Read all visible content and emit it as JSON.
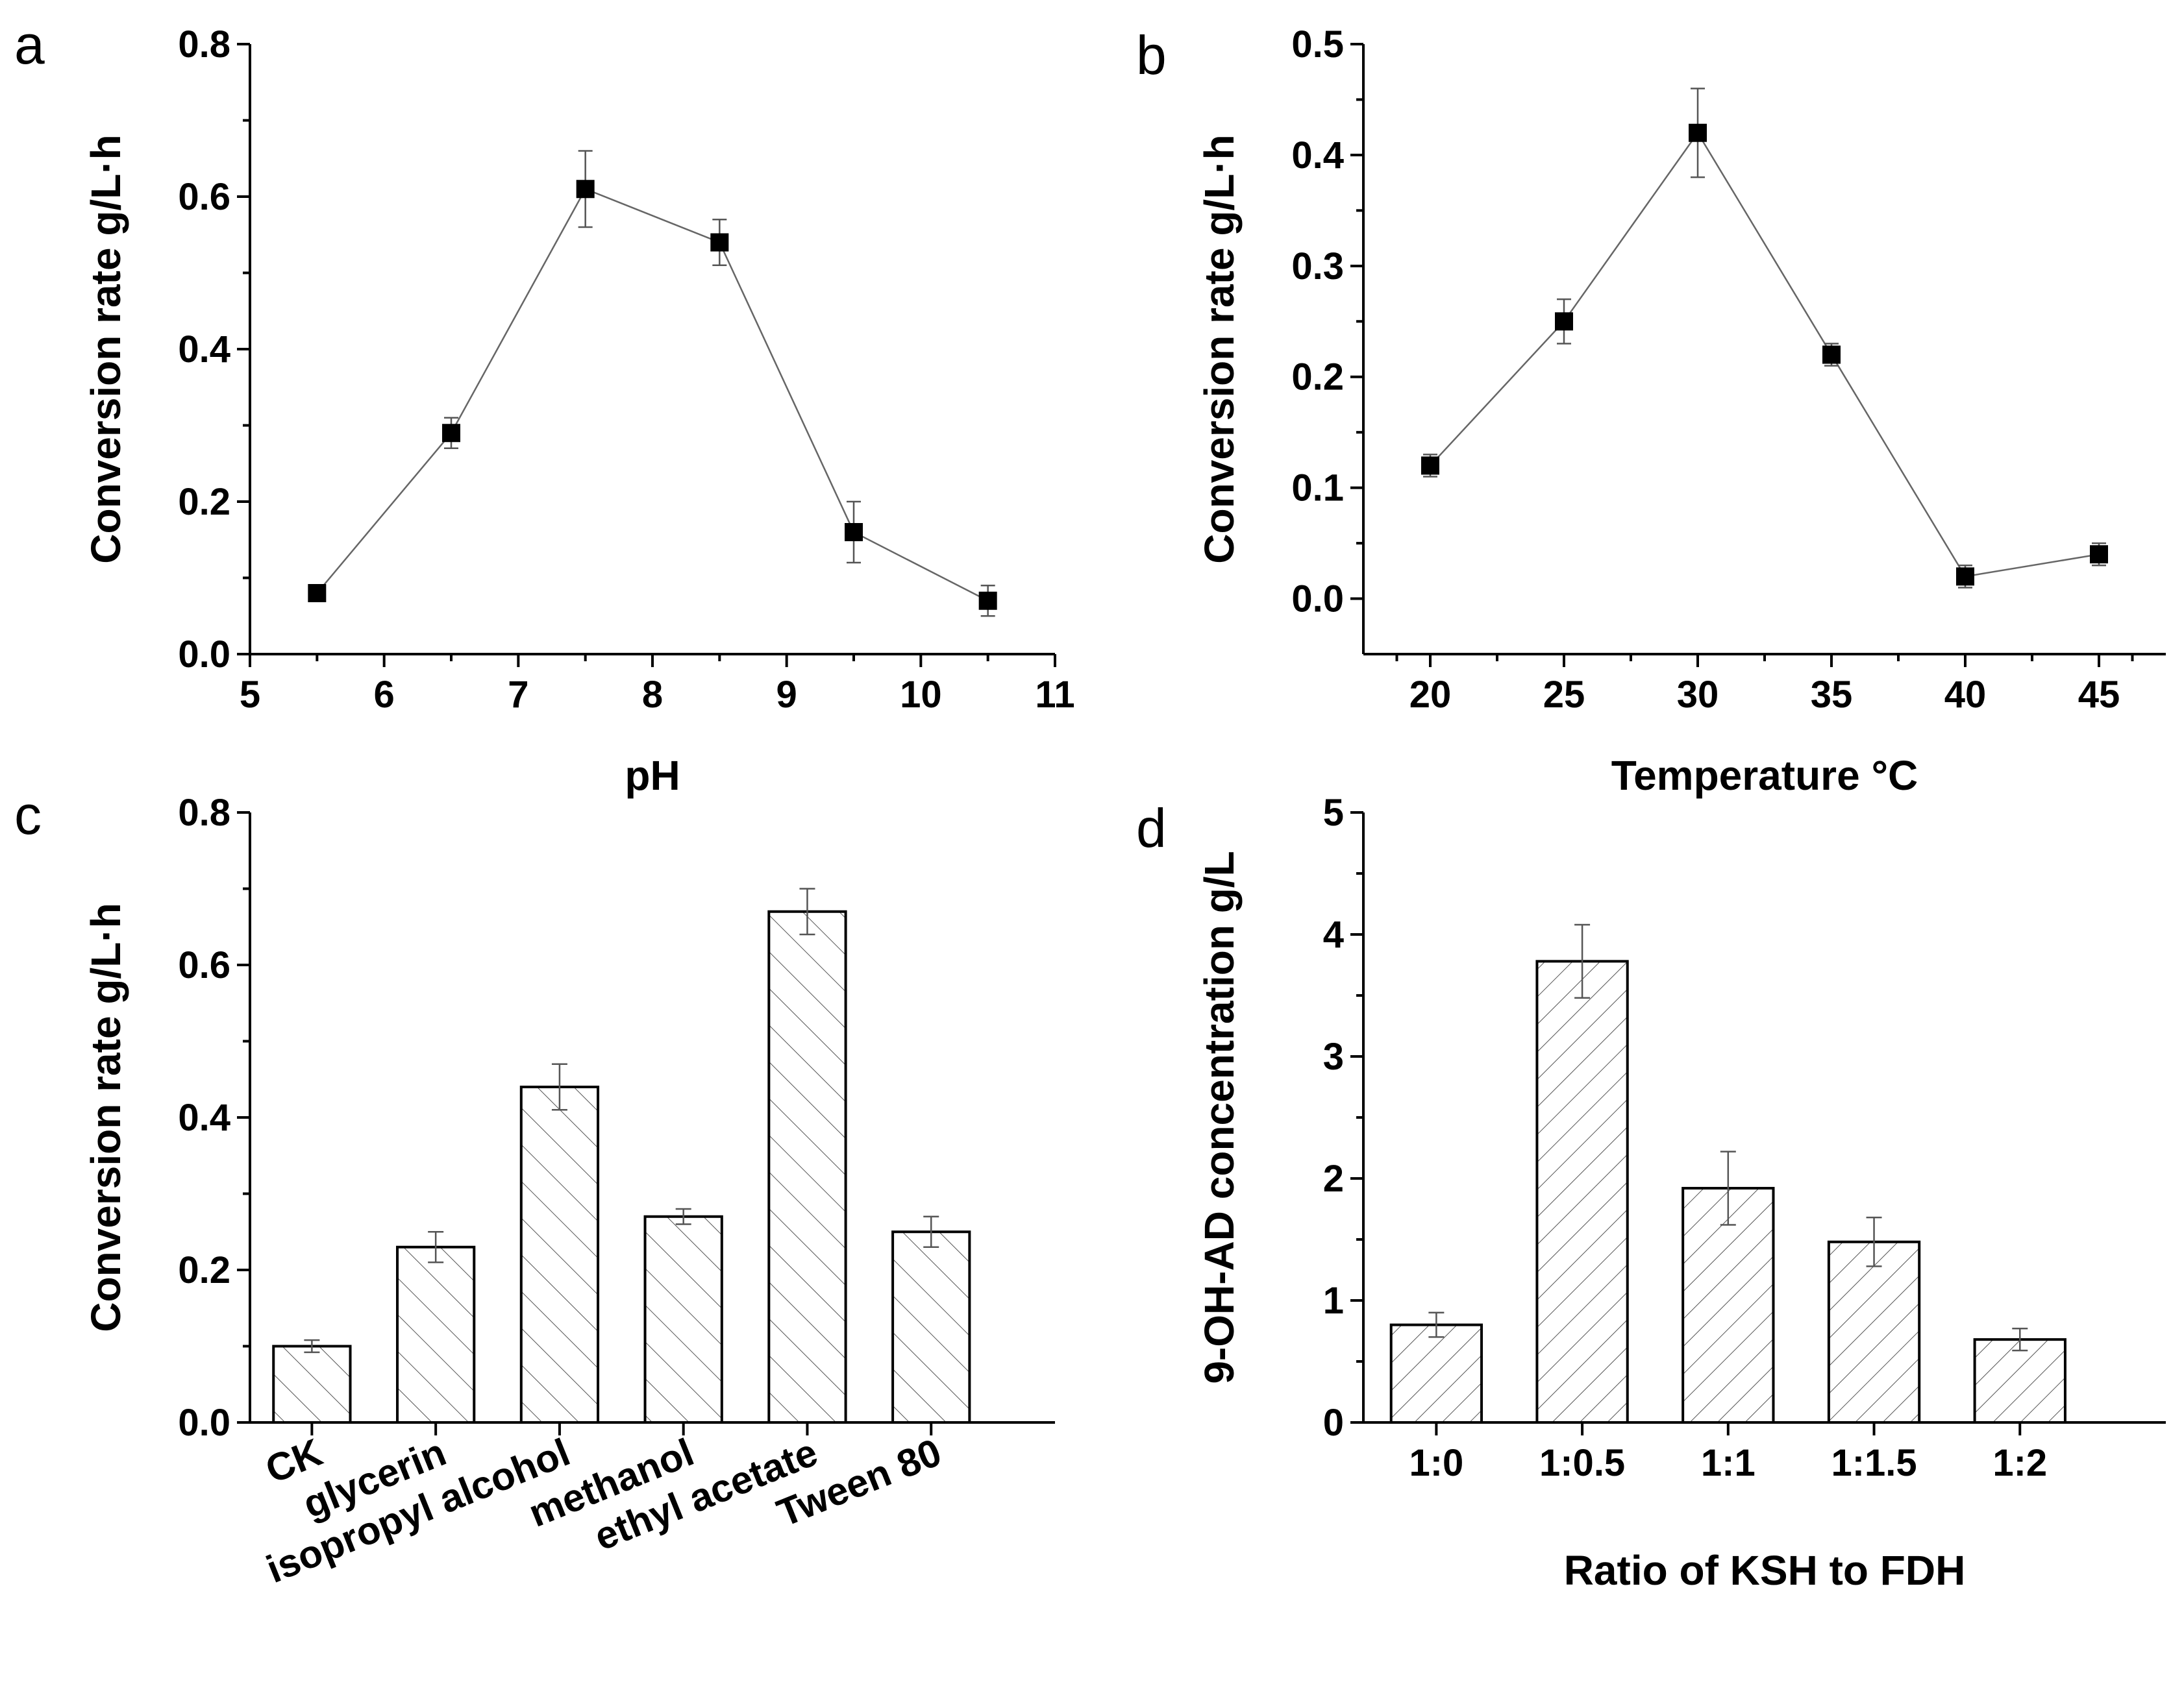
{
  "chart_data": [
    {
      "panel": "a",
      "type": "line",
      "xlabel": "pH",
      "ylabel": "Conversion rate g/L·h",
      "xlim": [
        5,
        11
      ],
      "ylim": [
        0,
        0.8
      ],
      "xticks": [
        5,
        6,
        7,
        8,
        9,
        10,
        11
      ],
      "xtick_labels": [
        "5",
        "6",
        "7",
        "8",
        "9",
        "10",
        "11"
      ],
      "yticks": [
        0,
        0.2,
        0.4,
        0.6,
        0.8
      ],
      "ytick_labels": [
        "0.0",
        "0.2",
        "0.4",
        "0.6",
        "0.8"
      ],
      "x": [
        5.5,
        6.5,
        7.5,
        8.5,
        9.5,
        10.5
      ],
      "y": [
        0.08,
        0.29,
        0.61,
        0.54,
        0.16,
        0.07
      ],
      "error": [
        0.0,
        0.02,
        0.05,
        0.03,
        0.04,
        0.02
      ],
      "marker": "square",
      "grid": false
    },
    {
      "panel": "b",
      "type": "line",
      "xlabel": "Temperature °C",
      "ylabel": "Conversion rate g/L·h",
      "xlim": [
        17.5,
        47.5
      ],
      "ylim": [
        -0.05,
        0.5
      ],
      "xticks": [
        20,
        25,
        30,
        35,
        40,
        45
      ],
      "xtick_labels": [
        "20",
        "25",
        "30",
        "35",
        "40",
        "45"
      ],
      "yticks": [
        0,
        0.1,
        0.2,
        0.3,
        0.4,
        0.5
      ],
      "ytick_labels": [
        "0.0",
        "0.1",
        "0.2",
        "0.3",
        "0.4",
        "0.5"
      ],
      "x": [
        20,
        25,
        30,
        35,
        40,
        45
      ],
      "y": [
        0.12,
        0.25,
        0.42,
        0.22,
        0.02,
        0.04
      ],
      "error": [
        0.01,
        0.02,
        0.04,
        0.01,
        0.01,
        0.01
      ],
      "marker": "square",
      "grid": false
    },
    {
      "panel": "c",
      "type": "bar",
      "xlabel": "",
      "ylabel": "Conversion rate g/L·h",
      "ylim": [
        0,
        0.8
      ],
      "yticks": [
        0,
        0.2,
        0.4,
        0.6,
        0.8
      ],
      "ytick_labels": [
        "0.0",
        "0.2",
        "0.4",
        "0.6",
        "0.8"
      ],
      "categories": [
        "CK",
        "glycerin",
        "isopropyl alcohol",
        "methanol",
        "ethyl acetate",
        "Tween 80"
      ],
      "values": [
        0.1,
        0.23,
        0.44,
        0.27,
        0.67,
        0.25
      ],
      "error": [
        0.008,
        0.02,
        0.03,
        0.01,
        0.03,
        0.02
      ],
      "hatch": "forward-diagonal",
      "grid": false
    },
    {
      "panel": "d",
      "type": "bar",
      "xlabel": "Ratio of KSH to FDH",
      "ylabel": "9-OH-AD concentration g/L",
      "ylim": [
        0,
        5
      ],
      "yticks": [
        0,
        1,
        2,
        3,
        4,
        5
      ],
      "ytick_labels": [
        "0",
        "1",
        "2",
        "3",
        "4",
        "5"
      ],
      "categories": [
        "1:0",
        "1:0.5",
        "1:1",
        "1:1.5",
        "1:2"
      ],
      "values": [
        0.8,
        3.78,
        1.92,
        1.48,
        0.68
      ],
      "error": [
        0.1,
        0.3,
        0.3,
        0.2,
        0.09
      ],
      "hatch": "back-diagonal",
      "grid": false
    }
  ]
}
